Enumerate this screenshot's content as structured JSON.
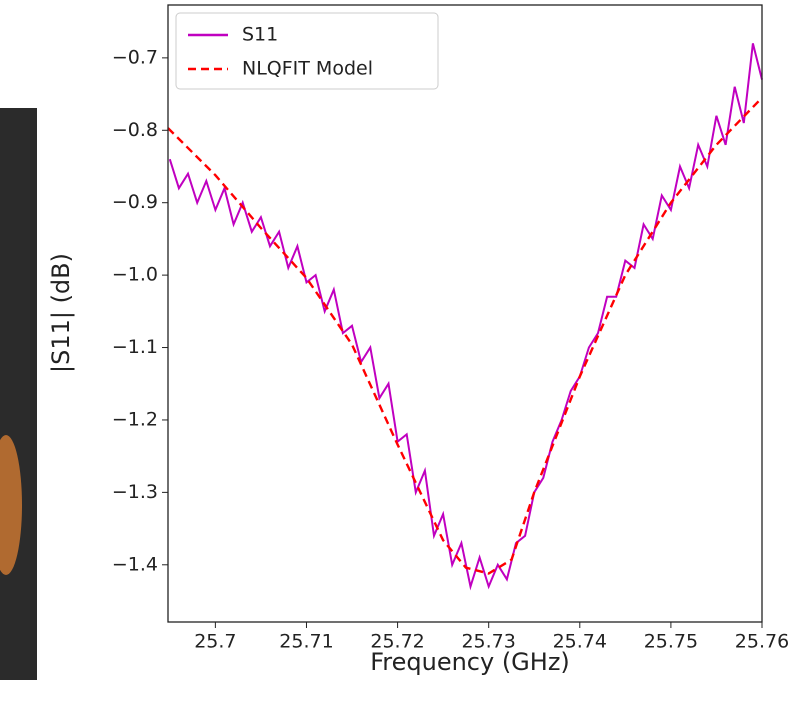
{
  "chart_data": {
    "type": "line",
    "xlabel": "Frequency (GHz)",
    "ylabel": "|S11| (dB)",
    "xlim": [
      25.6948,
      25.76
    ],
    "ylim": [
      -1.479,
      -0.627
    ],
    "xticks": [
      25.7,
      25.71,
      25.72,
      25.73,
      25.74,
      25.75,
      25.76
    ],
    "yticks": [
      {
        "value": -0.7,
        "label": "−0.7"
      },
      {
        "value": -0.8,
        "label": "−0.8"
      },
      {
        "value": -0.9,
        "label": "−0.9"
      },
      {
        "value": -1.0,
        "label": "−1.0"
      },
      {
        "value": -1.1,
        "label": "−1.1"
      },
      {
        "value": -1.2,
        "label": "−1.2"
      },
      {
        "value": -1.3,
        "label": "−1.3"
      },
      {
        "value": -1.4,
        "label": "−1.4"
      }
    ],
    "legend": "upper left",
    "series": [
      {
        "name": "S11",
        "color": "#c000c0",
        "style": "solid",
        "x": [
          25.695,
          25.696,
          25.697,
          25.698,
          25.699,
          25.7,
          25.701,
          25.702,
          25.703,
          25.704,
          25.705,
          25.706,
          25.707,
          25.708,
          25.709,
          25.71,
          25.711,
          25.712,
          25.713,
          25.714,
          25.715,
          25.716,
          25.717,
          25.718,
          25.719,
          25.72,
          25.721,
          25.722,
          25.723,
          25.724,
          25.725,
          25.726,
          25.727,
          25.728,
          25.729,
          25.73,
          25.731,
          25.732,
          25.733,
          25.734,
          25.735,
          25.736,
          25.737,
          25.738,
          25.739,
          25.74,
          25.741,
          25.742,
          25.743,
          25.744,
          25.745,
          25.746,
          25.747,
          25.748,
          25.749,
          25.75,
          25.751,
          25.752,
          25.753,
          25.754,
          25.755,
          25.756,
          25.757,
          25.758,
          25.759,
          25.76
        ],
        "values": [
          -0.84,
          -0.88,
          -0.86,
          -0.9,
          -0.87,
          -0.91,
          -0.88,
          -0.93,
          -0.9,
          -0.94,
          -0.92,
          -0.96,
          -0.94,
          -0.99,
          -0.96,
          -1.01,
          -1.0,
          -1.05,
          -1.02,
          -1.08,
          -1.07,
          -1.12,
          -1.1,
          -1.17,
          -1.15,
          -1.23,
          -1.22,
          -1.3,
          -1.27,
          -1.36,
          -1.33,
          -1.4,
          -1.37,
          -1.43,
          -1.39,
          -1.43,
          -1.4,
          -1.42,
          -1.37,
          -1.36,
          -1.3,
          -1.28,
          -1.23,
          -1.2,
          -1.16,
          -1.14,
          -1.1,
          -1.08,
          -1.03,
          -1.03,
          -0.98,
          -0.99,
          -0.93,
          -0.95,
          -0.89,
          -0.91,
          -0.85,
          -0.88,
          -0.82,
          -0.85,
          -0.78,
          -0.82,
          -0.74,
          -0.79,
          -0.68,
          -0.73
        ]
      },
      {
        "name": "NLQFIT Model",
        "color": "#ff0000",
        "style": "dashed",
        "x": [
          25.6948,
          25.7,
          25.705,
          25.71,
          25.715,
          25.72,
          25.725,
          25.7275,
          25.73,
          25.7325,
          25.735,
          25.74,
          25.745,
          25.75,
          25.755,
          25.76
        ],
        "values": [
          -0.797,
          -0.862,
          -0.935,
          -1.004,
          -1.096,
          -1.234,
          -1.366,
          -1.404,
          -1.412,
          -1.393,
          -1.3,
          -1.14,
          -1.0,
          -0.9,
          -0.82,
          -0.755
        ]
      }
    ]
  }
}
